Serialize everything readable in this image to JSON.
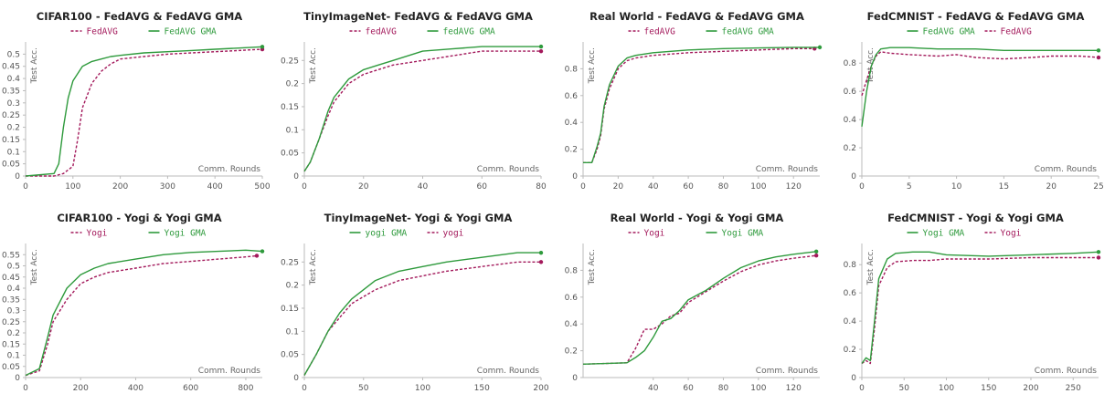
{
  "chart_data": [
    {
      "type": "line",
      "title": "CIFAR100 - FedAVG & FedAVG GMA",
      "xlabel": "Comm. Rounds",
      "ylabel": "Test Acc.",
      "xlim": [
        0,
        500
      ],
      "ylim": [
        0,
        0.55
      ],
      "xticks": [
        0,
        100,
        200,
        300,
        400,
        500
      ],
      "yticks": [
        0,
        0.05,
        0.1,
        0.15,
        0.2,
        0.25,
        0.3,
        0.35,
        0.4,
        0.45,
        0.5
      ],
      "legend_order": [
        0,
        1
      ],
      "series": [
        {
          "name": "FedAVG",
          "color": "#a3195b",
          "dash": true,
          "x": [
            0,
            60,
            80,
            100,
            110,
            120,
            140,
            160,
            180,
            200,
            250,
            300,
            350,
            400,
            450,
            500
          ],
          "y": [
            0,
            0.0,
            0.01,
            0.04,
            0.15,
            0.28,
            0.38,
            0.43,
            0.46,
            0.48,
            0.49,
            0.5,
            0.505,
            0.51,
            0.515,
            0.52
          ]
        },
        {
          "name": "FedAVG GMA",
          "color": "#2e9a3c",
          "dash": false,
          "x": [
            0,
            60,
            70,
            80,
            90,
            100,
            120,
            140,
            160,
            180,
            200,
            250,
            300,
            350,
            400,
            450,
            500
          ],
          "y": [
            0,
            0.01,
            0.05,
            0.2,
            0.32,
            0.39,
            0.45,
            0.47,
            0.48,
            0.49,
            0.495,
            0.505,
            0.51,
            0.515,
            0.52,
            0.525,
            0.53
          ]
        }
      ]
    },
    {
      "type": "line",
      "title": "TinyImageNet- FedAVG & FedAVG GMA",
      "xlabel": "Comm. Rounds",
      "ylabel": "Test Acc.",
      "xlim": [
        0,
        80
      ],
      "ylim": [
        0,
        0.29
      ],
      "xticks": [
        0,
        20,
        40,
        60,
        80
      ],
      "yticks": [
        0,
        0.05,
        0.1,
        0.15,
        0.2,
        0.25
      ],
      "legend_order": [
        0,
        1
      ],
      "series": [
        {
          "name": "fedAVG",
          "color": "#a3195b",
          "dash": true,
          "x": [
            0,
            2,
            5,
            8,
            10,
            15,
            20,
            25,
            30,
            40,
            50,
            60,
            70,
            80
          ],
          "y": [
            0.01,
            0.03,
            0.08,
            0.13,
            0.16,
            0.2,
            0.22,
            0.23,
            0.24,
            0.25,
            0.26,
            0.27,
            0.27,
            0.27
          ]
        },
        {
          "name": "fedAVG GMA",
          "color": "#2e9a3c",
          "dash": false,
          "x": [
            0,
            2,
            5,
            8,
            10,
            15,
            20,
            25,
            30,
            40,
            50,
            60,
            70,
            80
          ],
          "y": [
            0.01,
            0.03,
            0.08,
            0.14,
            0.17,
            0.21,
            0.23,
            0.24,
            0.25,
            0.27,
            0.275,
            0.28,
            0.28,
            0.28
          ]
        }
      ]
    },
    {
      "type": "line",
      "title": "Real World - FedAVG & FedAVG GMA",
      "xlabel": "Comm. Rounds",
      "ylabel": "Test Acc.",
      "xlim": [
        0,
        135
      ],
      "ylim": [
        0,
        1.0
      ],
      "xticks": [
        0,
        20,
        40,
        60,
        80,
        100,
        120
      ],
      "yticks": [
        0,
        0.2,
        0.4,
        0.6,
        0.8
      ],
      "legend_order": [
        0,
        1
      ],
      "series": [
        {
          "name": "fedAVG",
          "color": "#a3195b",
          "dash": true,
          "x": [
            0,
            5,
            8,
            10,
            12,
            15,
            20,
            25,
            30,
            40,
            60,
            80,
            100,
            120,
            132
          ],
          "y": [
            0.1,
            0.1,
            0.2,
            0.3,
            0.5,
            0.65,
            0.8,
            0.86,
            0.88,
            0.9,
            0.92,
            0.93,
            0.94,
            0.95,
            0.95
          ]
        },
        {
          "name": "fedAVG GMA",
          "color": "#2e9a3c",
          "dash": false,
          "x": [
            0,
            5,
            8,
            10,
            12,
            15,
            20,
            25,
            30,
            40,
            60,
            80,
            100,
            120,
            135
          ],
          "y": [
            0.1,
            0.1,
            0.22,
            0.32,
            0.52,
            0.68,
            0.82,
            0.88,
            0.9,
            0.92,
            0.94,
            0.95,
            0.955,
            0.96,
            0.96
          ]
        }
      ]
    },
    {
      "type": "line",
      "title": "FedCMNIST - FedAVG & FedAVG GMA",
      "xlabel": "Comm. Rounds",
      "ylabel": "Test Acc.",
      "xlim": [
        0,
        25
      ],
      "ylim": [
        0,
        0.95
      ],
      "xticks": [
        0,
        5,
        10,
        15,
        20,
        25
      ],
      "yticks": [
        0,
        0.2,
        0.4,
        0.6,
        0.8
      ],
      "legend_order": [
        1,
        0
      ],
      "series": [
        {
          "name": "FedAVG",
          "color": "#a3195b",
          "dash": true,
          "x": [
            0,
            0.5,
            1,
            1.5,
            2,
            3,
            5,
            8,
            10,
            12,
            15,
            18,
            20,
            23,
            25
          ],
          "y": [
            0.57,
            0.68,
            0.78,
            0.85,
            0.88,
            0.87,
            0.86,
            0.85,
            0.86,
            0.84,
            0.83,
            0.84,
            0.85,
            0.85,
            0.84
          ]
        },
        {
          "name": "FedAVG GMA",
          "color": "#2e9a3c",
          "dash": false,
          "x": [
            0,
            0.5,
            1,
            1.5,
            2,
            3,
            5,
            8,
            10,
            12,
            15,
            18,
            20,
            23,
            25
          ],
          "y": [
            0.35,
            0.6,
            0.78,
            0.86,
            0.9,
            0.91,
            0.91,
            0.9,
            0.9,
            0.9,
            0.89,
            0.89,
            0.89,
            0.89,
            0.89
          ]
        }
      ]
    },
    {
      "type": "line",
      "title": "CIFAR100 - Yogi & Yogi GMA",
      "xlabel": "Comm. Rounds",
      "ylabel": "Test Acc.",
      "xlim": [
        0,
        860
      ],
      "ylim": [
        0,
        0.6
      ],
      "xticks": [
        0,
        200,
        400,
        600,
        800
      ],
      "yticks": [
        0,
        0.05,
        0.1,
        0.15,
        0.2,
        0.25,
        0.3,
        0.35,
        0.4,
        0.45,
        0.5,
        0.55
      ],
      "legend_order": [
        0,
        1
      ],
      "series": [
        {
          "name": "Yogi",
          "color": "#a3195b",
          "dash": true,
          "x": [
            0,
            50,
            80,
            100,
            150,
            200,
            250,
            300,
            400,
            500,
            600,
            700,
            800,
            840
          ],
          "y": [
            0.01,
            0.03,
            0.15,
            0.25,
            0.35,
            0.42,
            0.45,
            0.47,
            0.49,
            0.51,
            0.52,
            0.53,
            0.54,
            0.545
          ]
        },
        {
          "name": "Yogi GMA",
          "color": "#2e9a3c",
          "dash": false,
          "x": [
            0,
            50,
            80,
            100,
            150,
            200,
            250,
            300,
            400,
            500,
            600,
            700,
            800,
            860
          ],
          "y": [
            0.01,
            0.04,
            0.18,
            0.28,
            0.4,
            0.46,
            0.49,
            0.51,
            0.53,
            0.55,
            0.56,
            0.565,
            0.57,
            0.565
          ]
        }
      ]
    },
    {
      "type": "line",
      "title": "TinyImageNet- Yogi & Yogi GMA",
      "xlabel": "Comm. Rounds",
      "ylabel": "Test Acc.",
      "xlim": [
        0,
        200
      ],
      "ylim": [
        0,
        0.29
      ],
      "xticks": [
        0,
        50,
        100,
        150,
        200
      ],
      "yticks": [
        0,
        0.05,
        0.1,
        0.15,
        0.2,
        0.25
      ],
      "legend_order": [
        1,
        0
      ],
      "series": [
        {
          "name": "yogi",
          "color": "#a3195b",
          "dash": true,
          "x": [
            0,
            10,
            20,
            30,
            40,
            60,
            80,
            100,
            120,
            150,
            180,
            200
          ],
          "y": [
            0.005,
            0.05,
            0.1,
            0.13,
            0.16,
            0.19,
            0.21,
            0.22,
            0.23,
            0.24,
            0.25,
            0.25
          ]
        },
        {
          "name": "yogi GMA",
          "color": "#2e9a3c",
          "dash": false,
          "x": [
            0,
            10,
            20,
            30,
            40,
            60,
            80,
            100,
            120,
            150,
            180,
            200
          ],
          "y": [
            0.005,
            0.05,
            0.1,
            0.14,
            0.17,
            0.21,
            0.23,
            0.24,
            0.25,
            0.26,
            0.27,
            0.27
          ]
        }
      ]
    },
    {
      "type": "line",
      "title": "Real World - Yogi & Yogi GMA",
      "xlabel": "Comm. Rounds",
      "ylabel": "Test Acc.",
      "xlim": [
        0,
        135
      ],
      "ylim": [
        0,
        1.0
      ],
      "xticks": [
        40,
        60,
        80,
        100,
        120
      ],
      "yticks": [
        0,
        0.2,
        0.4,
        0.6,
        0.8
      ],
      "legend_order": [
        0,
        1
      ],
      "series": [
        {
          "name": "Yogi",
          "color": "#a3195b",
          "dash": true,
          "x": [
            0,
            25,
            30,
            35,
            40,
            45,
            50,
            55,
            60,
            70,
            80,
            90,
            100,
            110,
            120,
            133
          ],
          "y": [
            0.1,
            0.11,
            0.22,
            0.36,
            0.36,
            0.4,
            0.46,
            0.48,
            0.56,
            0.64,
            0.72,
            0.79,
            0.84,
            0.87,
            0.89,
            0.91
          ]
        },
        {
          "name": "Yogi GMA",
          "color": "#2e9a3c",
          "dash": false,
          "x": [
            0,
            25,
            30,
            35,
            40,
            45,
            50,
            55,
            60,
            70,
            80,
            90,
            100,
            110,
            120,
            133
          ],
          "y": [
            0.1,
            0.11,
            0.15,
            0.2,
            0.3,
            0.42,
            0.44,
            0.5,
            0.58,
            0.65,
            0.74,
            0.82,
            0.87,
            0.9,
            0.92,
            0.94
          ]
        }
      ]
    },
    {
      "type": "line",
      "title": "FedCMNIST - Yogi & Yogi GMA",
      "xlabel": "Comm. Rounds",
      "ylabel": "Test Acc.",
      "xlim": [
        0,
        280
      ],
      "ylim": [
        0,
        0.95
      ],
      "xticks": [
        0,
        50,
        100,
        150,
        200,
        250
      ],
      "yticks": [
        0,
        0.2,
        0.4,
        0.6,
        0.8
      ],
      "legend_order": [
        1,
        0
      ],
      "series": [
        {
          "name": "Yogi",
          "color": "#a3195b",
          "dash": true,
          "x": [
            0,
            5,
            10,
            15,
            20,
            30,
            40,
            60,
            80,
            100,
            150,
            200,
            250,
            280
          ],
          "y": [
            0.1,
            0.12,
            0.1,
            0.35,
            0.65,
            0.78,
            0.82,
            0.83,
            0.83,
            0.84,
            0.84,
            0.85,
            0.85,
            0.85
          ]
        },
        {
          "name": "Yogi GMA",
          "color": "#2e9a3c",
          "dash": false,
          "x": [
            0,
            5,
            10,
            15,
            20,
            30,
            40,
            60,
            80,
            100,
            150,
            200,
            250,
            280
          ],
          "y": [
            0.1,
            0.14,
            0.12,
            0.4,
            0.7,
            0.84,
            0.88,
            0.89,
            0.89,
            0.87,
            0.86,
            0.87,
            0.88,
            0.89
          ]
        }
      ]
    }
  ]
}
